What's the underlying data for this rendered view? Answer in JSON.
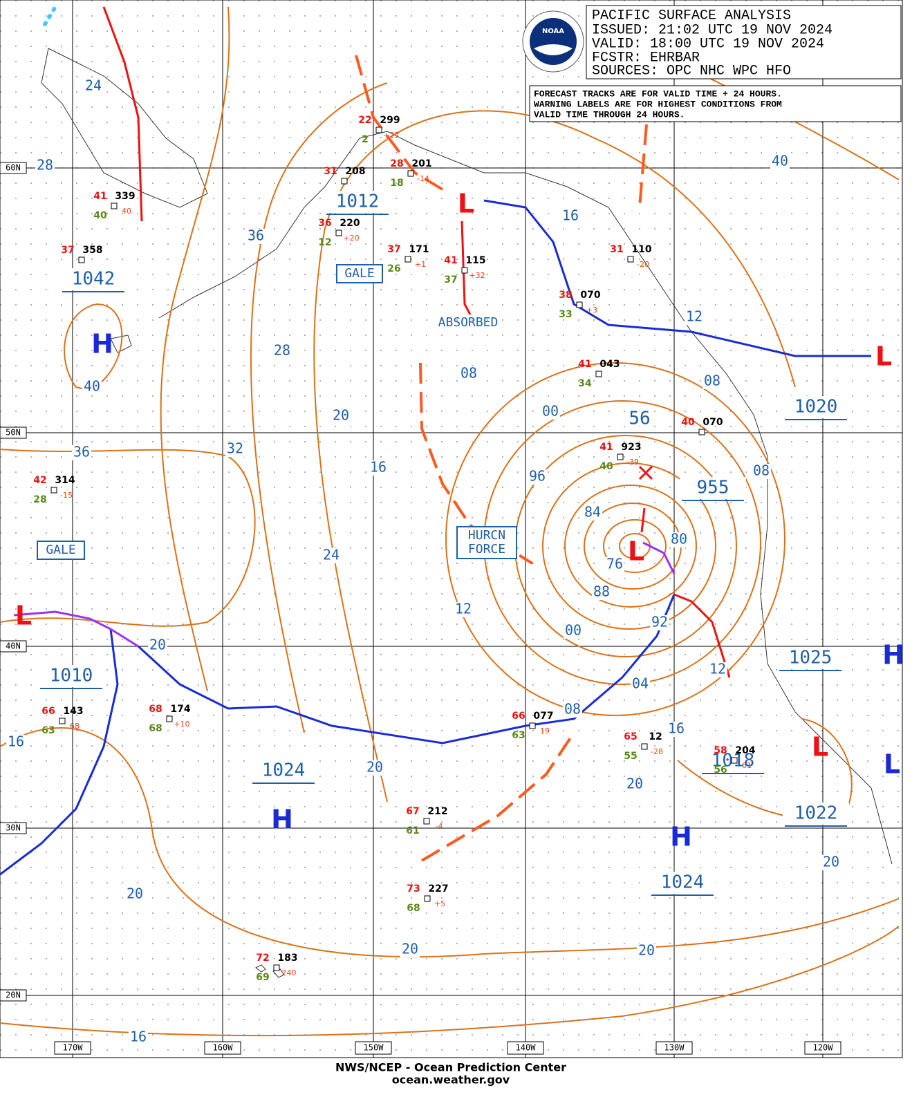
{
  "header": {
    "lines": [
      "PACIFIC SURFACE ANALYSIS",
      "ISSUED: 21:02 UTC 19 NOV 2024",
      "VALID:  18:00 UTC 19 NOV 2024",
      "FCSTR:  EHRBAR",
      "SOURCES: OPC NHC WPC HFO"
    ],
    "logo": "NOAA"
  },
  "note": [
    "FORECAST TRACKS ARE FOR VALID TIME + 24 HOURS.",
    "WARNING LABELS ARE FOR HIGHEST CONDITIONS FROM",
    "VALID TIME THROUGH 24 HOURS."
  ],
  "lat_labels": [
    "60N",
    "50N",
    "40N",
    "30N",
    "20N"
  ],
  "lon_labels": [
    "170W",
    "160W",
    "150W",
    "140W",
    "130W",
    "120W"
  ],
  "centers": [
    {
      "symbol": "H",
      "pressure": "1042"
    },
    {
      "symbol": "L",
      "pressure": "1012"
    },
    {
      "symbol": "L",
      "pressure": "1010"
    },
    {
      "symbol": "H",
      "pressure": "1024"
    },
    {
      "symbol": "L",
      "pressure": "955"
    },
    {
      "symbol": "H",
      "pressure": "1024"
    },
    {
      "symbol": "L",
      "pressure": "1018"
    },
    {
      "symbol": "L",
      "pressure": "1022"
    },
    {
      "symbol": "L",
      "pressure": "1020"
    },
    {
      "symbol": "H",
      "pressure": "1025"
    }
  ],
  "isobar_labels": [
    "24",
    "28",
    "36",
    "28",
    "40",
    "36",
    "32",
    "20",
    "16",
    "24",
    "08",
    "00",
    "96",
    "84",
    "76",
    "88",
    "80",
    "00",
    "92",
    "12",
    "04",
    "08",
    "12",
    "16",
    "20",
    "20",
    "20",
    "16",
    "20",
    "20",
    "20",
    "16",
    "20",
    "40",
    "12",
    "08",
    "16",
    "08",
    "56"
  ],
  "warnings": [
    "GALE",
    "GALE",
    "HURCN",
    "FORCE"
  ],
  "annotations": [
    "ABSORBED"
  ],
  "stations": [
    {
      "temp": "41",
      "pressure": "339",
      "dew": "40",
      "extra": "40"
    },
    {
      "temp": "37",
      "pressure": "358"
    },
    {
      "temp": "42",
      "pressure": "314",
      "dew": "28",
      "extra": "-15"
    },
    {
      "temp": "22",
      "pressure": "299",
      "dew": "2",
      "extra": "+27"
    },
    {
      "temp": "28",
      "pressure": "201",
      "dew": "18",
      "extra": "-14"
    },
    {
      "temp": "31",
      "pressure": "208"
    },
    {
      "temp": "36",
      "pressure": "220",
      "dew": "12",
      "extra": "+20"
    },
    {
      "temp": "37",
      "pressure": "171",
      "dew": "26",
      "extra": "+1"
    },
    {
      "temp": "41",
      "pressure": "115",
      "dew": "37",
      "extra": "+32"
    },
    {
      "temp": "38",
      "pressure": "070",
      "dew": "33",
      "extra": "+3"
    },
    {
      "temp": "41",
      "pressure": "043",
      "dew": "34"
    },
    {
      "temp": "41",
      "pressure": "923",
      "dew": "40",
      "extra": "-39"
    },
    {
      "temp": "40",
      "pressure": "070"
    },
    {
      "temp": "31",
      "pressure": "110",
      "extra": "-20"
    },
    {
      "temp": "66",
      "pressure": "143",
      "dew": "63",
      "extra": "68"
    },
    {
      "temp": "68",
      "pressure": "174",
      "dew": "68",
      "extra": "+10"
    },
    {
      "temp": "66",
      "pressure": "077",
      "dew": "63",
      "extra": "19"
    },
    {
      "temp": "65",
      "pressure": "12",
      "dew": "55",
      "extra": "-28"
    },
    {
      "temp": "58",
      "pressure": "204",
      "dew": "56",
      "extra": "61"
    },
    {
      "temp": "67",
      "pressure": "212",
      "dew": "61",
      "extra": "-4"
    },
    {
      "temp": "73",
      "pressure": "227",
      "dew": "68",
      "extra": "+5"
    },
    {
      "temp": "72",
      "pressure": "183",
      "dew": "69",
      "extra": "240"
    }
  ],
  "footer": [
    "NWS/NCEP - Ocean Prediction Center",
    "ocean.weather.gov"
  ]
}
